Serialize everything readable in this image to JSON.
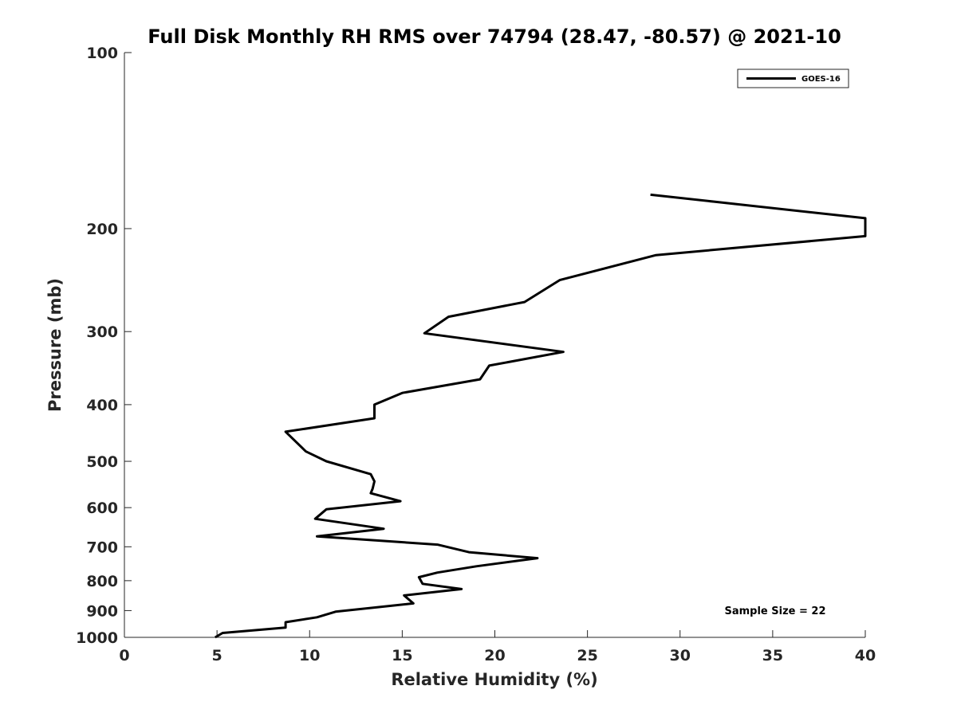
{
  "chart_data": {
    "type": "line",
    "title": "Full Disk Monthly RH RMS over 74794 (28.47, -80.57) @ 2021-10",
    "xlabel": "Relative Humidity (%)",
    "ylabel": "Pressure (mb)",
    "xlim": [
      0,
      40
    ],
    "ylim": [
      100,
      1000
    ],
    "y_scale": "log",
    "y_reversed": true,
    "x_ticks": [
      0,
      5,
      10,
      15,
      20,
      25,
      30,
      35,
      40
    ],
    "x_tick_labels": [
      "0",
      "5",
      "10",
      "15",
      "20",
      "25",
      "30",
      "35",
      "40"
    ],
    "y_ticks": [
      100,
      200,
      300,
      400,
      500,
      600,
      700,
      800,
      900,
      1000
    ],
    "y_tick_labels": [
      "100",
      "200",
      "300",
      "400",
      "500",
      "600",
      "700",
      "800",
      "900",
      "1000"
    ],
    "grid": false,
    "legend_position": "top-right",
    "annotation": "Sample Size = 22",
    "series": [
      {
        "name": "GOES-16",
        "color": "#000000",
        "points": [
          [
            28.4,
            175
          ],
          [
            40.0,
            192
          ],
          [
            40.0,
            206
          ],
          [
            28.7,
            222
          ],
          [
            23.5,
            245
          ],
          [
            21.6,
            267
          ],
          [
            17.5,
            283
          ],
          [
            16.2,
            302
          ],
          [
            23.7,
            325
          ],
          [
            19.7,
            343
          ],
          [
            19.2,
            362
          ],
          [
            15.0,
            382
          ],
          [
            13.5,
            400
          ],
          [
            13.5,
            422
          ],
          [
            8.7,
            445
          ],
          [
            9.2,
            461
          ],
          [
            9.8,
            481
          ],
          [
            10.9,
            500
          ],
          [
            13.3,
            526
          ],
          [
            13.5,
            541
          ],
          [
            13.4,
            557
          ],
          [
            13.3,
            567
          ],
          [
            14.9,
            585
          ],
          [
            10.9,
            604
          ],
          [
            10.3,
            627
          ],
          [
            14.0,
            652
          ],
          [
            10.4,
            672
          ],
          [
            16.9,
            694
          ],
          [
            18.6,
            715
          ],
          [
            22.3,
            732
          ],
          [
            19.0,
            756
          ],
          [
            16.9,
            775
          ],
          [
            15.9,
            789
          ],
          [
            16.1,
            810
          ],
          [
            18.2,
            827
          ],
          [
            15.1,
            848
          ],
          [
            15.6,
            875
          ],
          [
            11.4,
            904
          ],
          [
            10.4,
            924
          ],
          [
            8.7,
            942
          ],
          [
            8.7,
            962
          ],
          [
            5.3,
            983
          ],
          [
            4.9,
            1000
          ]
        ]
      }
    ]
  }
}
